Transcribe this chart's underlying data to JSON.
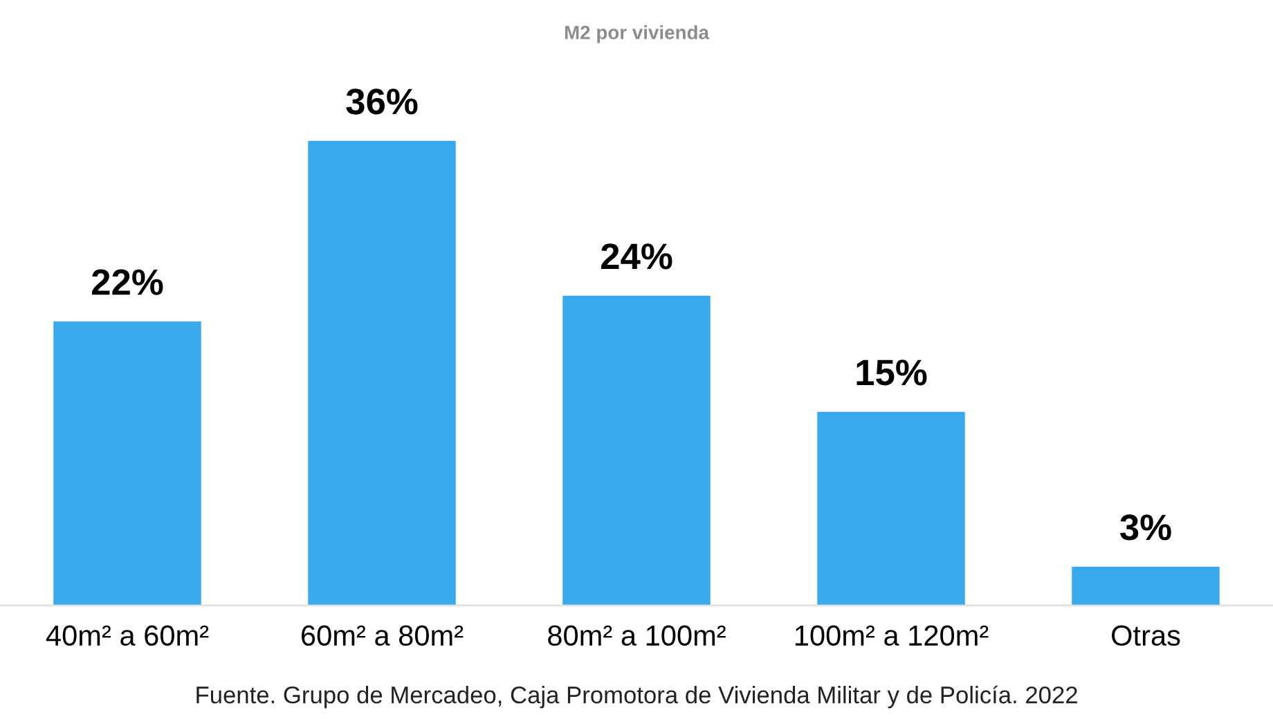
{
  "chart_data": {
    "type": "bar",
    "title": "M2 por vivienda",
    "categories": [
      "40m² a 60m²",
      "60m² a 80m²",
      "80m² a 100m²",
      "100m² a 120m²",
      "Otras"
    ],
    "values": [
      22,
      36,
      24,
      15,
      3
    ],
    "color": "#3aa8ec",
    "value_labels": [
      "22%",
      "36%",
      "24%",
      "15%",
      "3%"
    ],
    "annotations": [
      "Fuente. Grupo de Mercadeo, Caja Promotora de Vivienda Militar y de Policía. 2022"
    ]
  }
}
